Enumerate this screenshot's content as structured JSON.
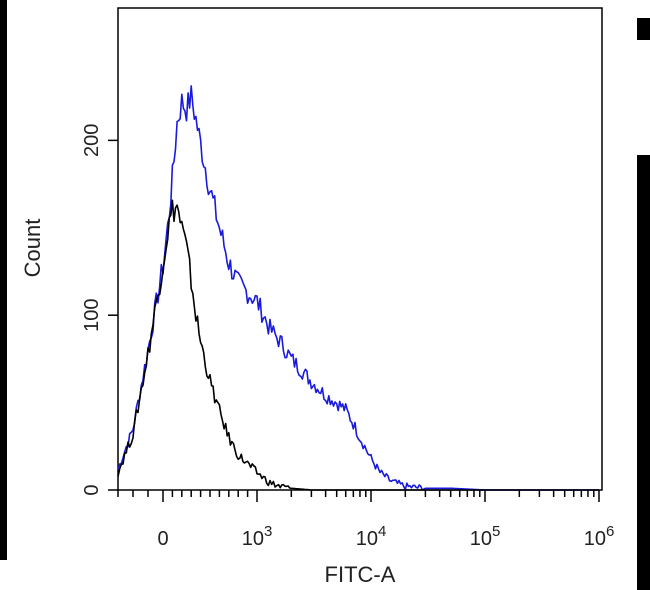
{
  "chart_data": {
    "type": "line",
    "title": "",
    "xlabel": "FITC-A",
    "ylabel": "Count",
    "x_scale": "biexponential",
    "xlim": [
      -300,
      1000000
    ],
    "ylim": [
      0,
      270
    ],
    "x_ticks": [
      {
        "value": 0,
        "label": "0",
        "exp": ""
      },
      {
        "value": 1000,
        "label": "10",
        "exp": "3"
      },
      {
        "value": 10000,
        "label": "10",
        "exp": "4"
      },
      {
        "value": 100000,
        "label": "10",
        "exp": "5"
      },
      {
        "value": 1000000,
        "label": "10",
        "exp": "6"
      }
    ],
    "y_ticks": [
      {
        "value": 0,
        "label": "0"
      },
      {
        "value": 100,
        "label": "100"
      },
      {
        "value": 200,
        "label": "200"
      }
    ],
    "grid": false,
    "legend": "none",
    "series": [
      {
        "color": "#1a1adc",
        "x": [
          -300,
          -200,
          -100,
          0,
          50,
          100,
          150,
          200,
          250,
          300,
          350,
          400,
          500,
          600,
          700,
          800,
          1000,
          1300,
          1600,
          2000,
          2500,
          3000,
          3500,
          4000,
          5000,
          6000,
          7000,
          8000,
          10000,
          12000,
          15000,
          20000,
          30000,
          50000,
          100000,
          200000,
          1000000
        ],
        "y": [
          12,
          35,
          80,
          128,
          150,
          178,
          210,
          222,
          218,
          225,
          212,
          198,
          172,
          150,
          130,
          118,
          108,
          92,
          85,
          75,
          68,
          62,
          58,
          54,
          50,
          46,
          38,
          30,
          18,
          10,
          5,
          2,
          1,
          1,
          0,
          0,
          0
        ]
      },
      {
        "color": "#000000",
        "x": [
          -300,
          -200,
          -100,
          0,
          50,
          100,
          150,
          200,
          250,
          300,
          350,
          400,
          500,
          600,
          700,
          800,
          1000,
          1300,
          1600,
          2000,
          3000,
          5000,
          10000,
          100000,
          1000000
        ],
        "y": [
          10,
          32,
          78,
          130,
          148,
          160,
          162,
          150,
          138,
          120,
          100,
          85,
          62,
          45,
          30,
          20,
          10,
          4,
          2,
          1,
          0,
          0,
          0,
          0,
          0
        ]
      }
    ]
  }
}
